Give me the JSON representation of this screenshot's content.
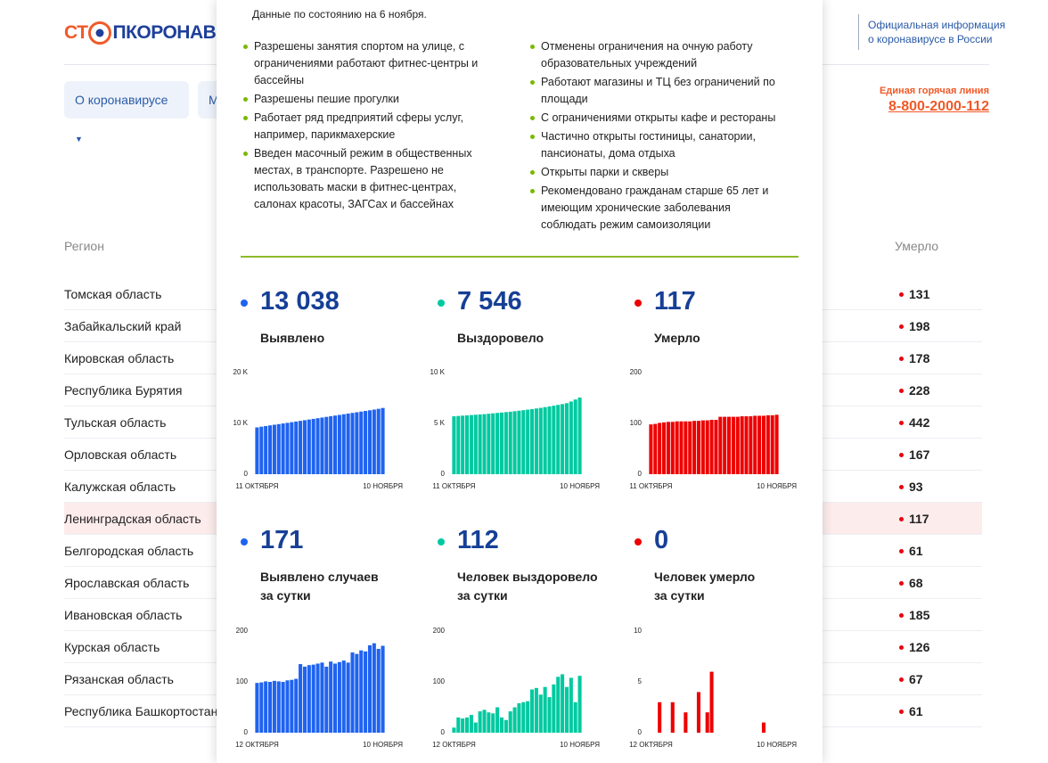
{
  "header": {
    "logo": [
      "СТ",
      "ПКОРОНАВИ"
    ],
    "official": [
      "Официальная информация",
      "о коронавирусе в России"
    ],
    "hotline_label": "Единая горячая линия",
    "hotline_phone": "8-800-2000-112"
  },
  "nav": [
    "О коронавирусе",
    "М"
  ],
  "table": {
    "headers": [
      "Регион",
      "Умерло"
    ],
    "rows": [
      [
        "Томская область",
        "131"
      ],
      [
        "Забайкальский край",
        "198"
      ],
      [
        "Кировская область",
        "178"
      ],
      [
        "Республика Бурятия",
        "228"
      ],
      [
        "Тульская область",
        "442"
      ],
      [
        "Орловская область",
        "167"
      ],
      [
        "Калужская область",
        "93"
      ],
      [
        "Ленинградская область",
        "117"
      ],
      [
        "Белгородская область",
        "61"
      ],
      [
        "Ярославская область",
        "68"
      ],
      [
        "Ивановская область",
        "185"
      ],
      [
        "Курская область",
        "126"
      ],
      [
        "Рязанская область",
        "67"
      ],
      [
        "Республика Башкортостан",
        "61"
      ]
    ]
  },
  "popup": {
    "date": "Данные по состоянию на 6 ноября.",
    "left_list": [
      "Разрешены занятия спортом на улице, с ограничениями работают фитнес-центры и бассейны",
      "Разрешены пешие прогулки",
      "Работает ряд предприятий сферы услуг, например, парикмахерские",
      "Введен масочный режим в общественных местах, в транспорте. Разрешено не использовать маски в фитнес-центрах, салонах красоты, ЗАГСах и бассейнах"
    ],
    "right_list": [
      "Отменены ограничения на очную работу образовательных учреждений",
      "Работают магазины и ТЦ без ограничений по площади",
      "С ограничениями открыты кафе и рестораны",
      "Частично открыты гостиницы, санатории, пансионаты, дома отдыха",
      "Открыты парки и скверы",
      "Рекомендовано гражданам старше 65 лет и имеющим хронические заболевания соблюдать режим самоизоляции"
    ],
    "stats": [
      {
        "value": "13 038",
        "label": [
          "Выявлено"
        ],
        "color": "#1f63f0",
        "chart": {
          "type": "bar",
          "ylim": [
            0,
            20000
          ],
          "yticks": [
            0,
            {
              "value": 10000,
              "label": "10 K"
            },
            {
              "value": 20000,
              "label": "20 K"
            }
          ],
          "categories": [
            "11 ОКТЯБРЯ",
            null,
            null,
            null,
            null,
            null,
            null,
            null,
            null,
            null,
            null,
            null,
            null,
            null,
            null,
            null,
            null,
            null,
            null,
            null,
            null,
            null,
            null,
            null,
            null,
            null,
            null,
            null,
            null,
            "10 НОЯБРЯ"
          ],
          "values": [
            9213,
            9350,
            9480,
            9610,
            9735,
            9860,
            9985,
            10110,
            10240,
            10370,
            10500,
            10630,
            10760,
            10890,
            11020,
            11150,
            11280,
            11410,
            11540,
            11670,
            11800,
            11930,
            12060,
            12190,
            12320,
            12450,
            12580,
            12720,
            12870,
            13038
          ]
        }
      },
      {
        "value": "7 546",
        "label": [
          "Выздоровело"
        ],
        "color": "#00c9a0",
        "chart": {
          "type": "bar",
          "ylim": [
            0,
            10000
          ],
          "yticks": [
            0,
            {
              "value": 5000,
              "label": "5 K"
            },
            {
              "value": 10000,
              "label": "10 K"
            }
          ],
          "categories": [
            "11 ОКТЯБРЯ",
            null,
            null,
            null,
            null,
            null,
            null,
            null,
            null,
            null,
            null,
            null,
            null,
            null,
            null,
            null,
            null,
            null,
            null,
            null,
            null,
            null,
            null,
            null,
            null,
            null,
            null,
            null,
            null,
            "10 НОЯБРЯ"
          ],
          "values": [
            5700,
            5730,
            5760,
            5790,
            5820,
            5850,
            5880,
            5910,
            5950,
            5990,
            6030,
            6070,
            6110,
            6150,
            6200,
            6250,
            6300,
            6350,
            6410,
            6470,
            6530,
            6600,
            6670,
            6740,
            6820,
            6900,
            6990,
            7150,
            7350,
            7546
          ]
        }
      },
      {
        "value": "117",
        "label": [
          "Умерло"
        ],
        "color": "#ee0000",
        "chart": {
          "type": "bar",
          "ylim": [
            0,
            200
          ],
          "yticks": [
            0,
            100,
            200
          ],
          "categories": [
            "11 ОКТЯБРЯ",
            null,
            null,
            null,
            null,
            null,
            null,
            null,
            null,
            null,
            null,
            null,
            null,
            null,
            null,
            null,
            null,
            null,
            null,
            null,
            null,
            null,
            null,
            null,
            null,
            null,
            null,
            null,
            null,
            "10 НОЯБРЯ"
          ],
          "values": [
            98,
            99,
            101,
            102,
            103,
            103,
            104,
            104,
            104,
            104,
            105,
            105,
            106,
            106,
            107,
            107,
            113,
            113,
            113,
            113,
            113,
            114,
            114,
            114,
            115,
            115,
            115,
            116,
            116,
            117
          ]
        }
      },
      {
        "value": "171",
        "label": [
          "Выявлено случаев",
          "за сутки"
        ],
        "color": "#1f63f0",
        "chart": {
          "type": "bar",
          "ylim": [
            0,
            200
          ],
          "yticks": [
            0,
            100,
            200
          ],
          "categories": [
            "12 ОКТЯБРЯ",
            null,
            null,
            null,
            null,
            null,
            null,
            null,
            null,
            null,
            null,
            null,
            null,
            null,
            null,
            null,
            null,
            null,
            null,
            null,
            null,
            null,
            null,
            null,
            null,
            null,
            null,
            null,
            null,
            "10 НОЯБРЯ"
          ],
          "values": [
            98,
            99,
            101,
            100,
            102,
            101,
            100,
            103,
            104,
            106,
            135,
            130,
            133,
            134,
            136,
            138,
            130,
            140,
            136,
            139,
            142,
            138,
            158,
            155,
            162,
            160,
            172,
            176,
            165,
            171
          ]
        }
      },
      {
        "value": "112",
        "label": [
          "Человек выздоровело",
          "за сутки"
        ],
        "color": "#00c9a0",
        "chart": {
          "type": "bar",
          "ylim": [
            0,
            200
          ],
          "yticks": [
            0,
            100,
            200
          ],
          "categories": [
            "12 ОКТЯБРЯ",
            null,
            null,
            null,
            null,
            null,
            null,
            null,
            null,
            null,
            null,
            null,
            null,
            null,
            null,
            null,
            null,
            null,
            null,
            null,
            null,
            null,
            null,
            null,
            null,
            null,
            null,
            null,
            null,
            "10 НОЯБРЯ"
          ],
          "values": [
            10,
            30,
            28,
            30,
            35,
            20,
            42,
            45,
            40,
            38,
            50,
            30,
            25,
            42,
            50,
            58,
            60,
            62,
            85,
            88,
            75,
            90,
            70,
            95,
            110,
            115,
            90,
            108,
            60,
            112
          ]
        }
      },
      {
        "value": "0",
        "label": [
          "Человек умерло",
          "за сутки"
        ],
        "color": "#ee0000",
        "chart": {
          "type": "bar",
          "ylim": [
            0,
            10
          ],
          "yticks": [
            0,
            5,
            10
          ],
          "categories": [
            "12 ОКТЯБРЯ",
            null,
            null,
            null,
            null,
            null,
            null,
            null,
            null,
            null,
            null,
            null,
            null,
            null,
            null,
            null,
            null,
            null,
            null,
            null,
            null,
            null,
            null,
            null,
            null,
            null,
            null,
            null,
            null,
            "10 НОЯБРЯ"
          ],
          "values": [
            0,
            0,
            3,
            0,
            0,
            3,
            0,
            0,
            2,
            0,
            0,
            4,
            0,
            2,
            6,
            0,
            0,
            0,
            0,
            0,
            0,
            0,
            0,
            0,
            0,
            0,
            1,
            0,
            0,
            0
          ]
        }
      }
    ]
  }
}
